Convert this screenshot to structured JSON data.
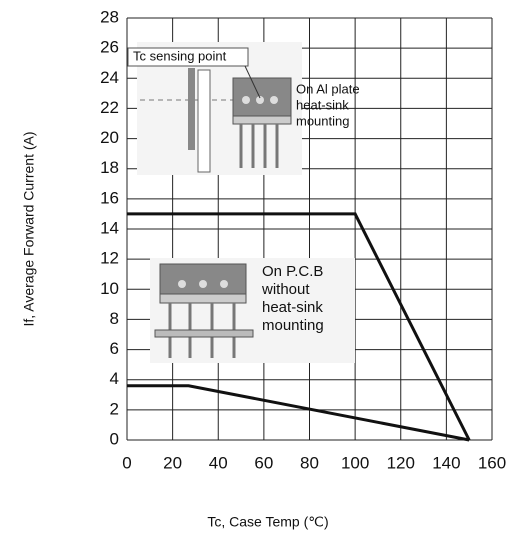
{
  "chart_data": {
    "type": "line",
    "x_label": "Tc, Case Temp (℃)",
    "y_label": "If, Average Forward Current (A)",
    "series": [
      {
        "color": "#111111",
        "x": [
          0,
          100,
          150
        ],
        "values": [
          15,
          15,
          0
        ]
      },
      {
        "color": "#111111",
        "x": [
          0,
          27,
          150
        ],
        "values": [
          3.6,
          3.6,
          0
        ]
      }
    ],
    "annotations": {
      "sensing": "Tc sensing point",
      "al_plate": [
        "On Al plate",
        "heat-sink",
        "mounting"
      ],
      "pcb": [
        "On P.C.B",
        "without",
        "heat-sink",
        "mounting"
      ]
    },
    "xlim": [
      0,
      160
    ],
    "xticks": [
      0,
      20,
      40,
      60,
      80,
      100,
      120,
      140,
      160
    ],
    "ylim": [
      0,
      28
    ],
    "yticks": [
      0,
      2,
      4,
      6,
      8,
      10,
      12,
      14,
      16,
      18,
      20,
      22,
      24,
      26,
      28
    ],
    "grid": true
  }
}
